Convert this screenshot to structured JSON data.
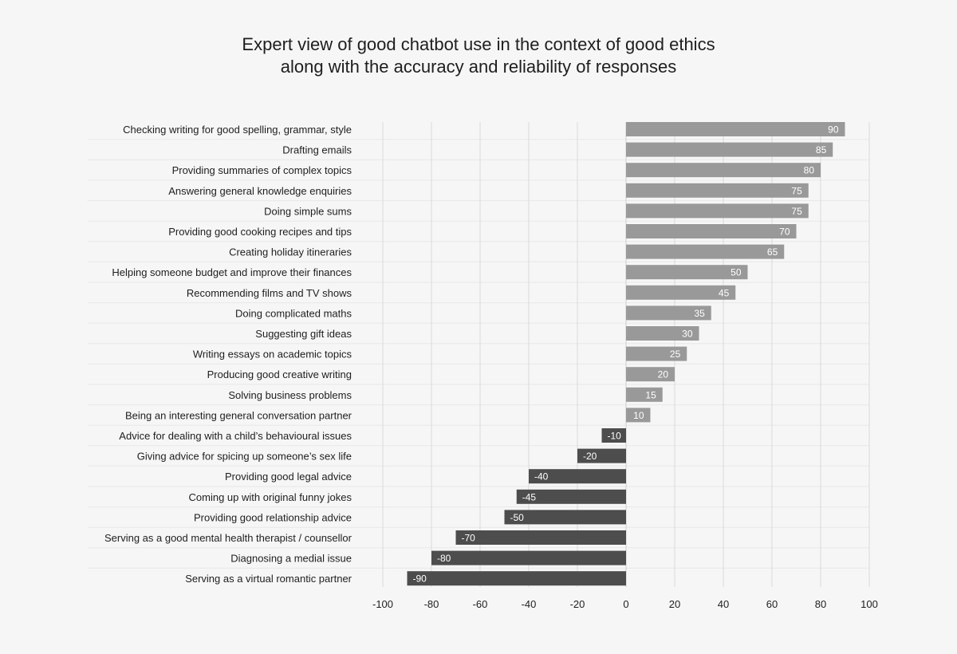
{
  "title": {
    "line1": "Expert view of good chatbot use in the context of good ethics",
    "line2": "along with the accuracy and reliability of responses"
  },
  "colors": {
    "positive_bar": "#999999",
    "negative_bar": "#4d4d4d",
    "grid": "#d9d9d9",
    "zero_line": "#cfcfcf",
    "row_separator": "#e8e8e8",
    "bar_label": "#ffffff",
    "text": "#1e1e1e",
    "background": "#f6f6f6"
  },
  "chart_data": {
    "type": "bar",
    "orientation": "horizontal",
    "title": "Expert view of good chatbot use in the context of good ethics along with the accuracy and reliability of responses",
    "xlabel": "",
    "ylabel": "",
    "xlim": [
      -100,
      100
    ],
    "xticks": [
      -100,
      -80,
      -60,
      -40,
      -20,
      0,
      20,
      40,
      60,
      80,
      100
    ],
    "grid": true,
    "legend": "none",
    "categories": [
      "Checking writing for good spelling, grammar, style",
      "Drafting emails",
      "Providing summaries of complex topics",
      "Answering general knowledge enquiries",
      "Doing simple sums",
      "Providing good cooking recipes and tips",
      "Creating holiday itineraries",
      "Helping someone budget and improve their finances",
      "Recommending films and TV shows",
      "Doing complicated maths",
      "Suggesting gift ideas",
      "Writing essays on academic topics",
      "Producing good creative writing",
      "Solving business problems",
      "Being an interesting general conversation partner",
      "Advice for dealing with a child’s behavioural issues",
      "Giving advice for spicing up someone’s sex life",
      "Providing good legal advice",
      "Coming up with original funny jokes",
      "Providing good relationship advice",
      "Serving as a good mental health therapist / counsellor",
      "Diagnosing a medial issue",
      "Serving as a virtual romantic partner"
    ],
    "values": [
      90,
      85,
      80,
      75,
      75,
      70,
      65,
      50,
      45,
      35,
      30,
      25,
      20,
      15,
      10,
      -10,
      -20,
      -40,
      -45,
      -50,
      -70,
      -80,
      -90
    ]
  }
}
